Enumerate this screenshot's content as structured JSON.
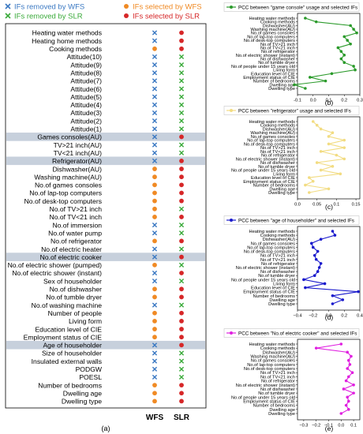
{
  "chart_data": [
    {
      "type": "scatter",
      "panel_label": "(a)",
      "legend": [
        {
          "label": "IFs removed by WFS",
          "marker": "x",
          "color": "#3a78c2"
        },
        {
          "label": "IFs selected by WFS",
          "marker": "dot",
          "color": "#f08a24"
        },
        {
          "label": "IFs removed by SLR",
          "marker": "x",
          "color": "#3aaa3a"
        },
        {
          "label": "IFs selected by SLR",
          "marker": "dot",
          "color": "#d62728"
        }
      ],
      "columns": [
        "WFS",
        "SLR"
      ],
      "rows": [
        {
          "label": "Heating water methods",
          "wfs": "x",
          "slr": "dot",
          "highlight": false
        },
        {
          "label": "Heating home methods",
          "wfs": "x",
          "slr": "dot",
          "highlight": false
        },
        {
          "label": "Cooking methods",
          "wfs": "dot",
          "slr": "dot",
          "highlight": false
        },
        {
          "label": "Attitude(10)",
          "wfs": "x",
          "slr": "x",
          "highlight": false
        },
        {
          "label": "Attitude(9)",
          "wfs": "x",
          "slr": "x",
          "highlight": false
        },
        {
          "label": "Attitude(8)",
          "wfs": "x",
          "slr": "x",
          "highlight": false
        },
        {
          "label": "Attitude(7)",
          "wfs": "x",
          "slr": "x",
          "highlight": false
        },
        {
          "label": "Attitude(6)",
          "wfs": "x",
          "slr": "x",
          "highlight": false
        },
        {
          "label": "Attitude(5)",
          "wfs": "x",
          "slr": "x",
          "highlight": false
        },
        {
          "label": "Attitude(4)",
          "wfs": "x",
          "slr": "x",
          "highlight": false
        },
        {
          "label": "Attitude(3)",
          "wfs": "x",
          "slr": "x",
          "highlight": false
        },
        {
          "label": "Attitude(2)",
          "wfs": "x",
          "slr": "x",
          "highlight": false
        },
        {
          "label": "Attitude(1)",
          "wfs": "x",
          "slr": "x",
          "highlight": false
        },
        {
          "label": "Games consoles(AU)",
          "wfs": "x",
          "slr": "dot",
          "highlight": true
        },
        {
          "label": "TV>21 inch(AU)",
          "wfs": "x",
          "slr": "x",
          "highlight": false
        },
        {
          "label": "TV<21 inch(AU)",
          "wfs": "x",
          "slr": "x",
          "highlight": false
        },
        {
          "label": "Refrigerator(AU)",
          "wfs": "x",
          "slr": "dot",
          "highlight": true
        },
        {
          "label": "Dishwasher(AU)",
          "wfs": "dot",
          "slr": "dot",
          "highlight": false
        },
        {
          "label": "Washing machine(AU)",
          "wfs": "dot",
          "slr": "dot",
          "highlight": false
        },
        {
          "label": "No.of games consoles",
          "wfs": "dot",
          "slr": "dot",
          "highlight": false
        },
        {
          "label": "No.of lap-top computers",
          "wfs": "dot",
          "slr": "dot",
          "highlight": false
        },
        {
          "label": "No.of desk-top computers",
          "wfs": "dot",
          "slr": "dot",
          "highlight": false
        },
        {
          "label": "No.of TV>21 inch",
          "wfs": "dot",
          "slr": "x",
          "highlight": false
        },
        {
          "label": "No.of TV<21 inch",
          "wfs": "dot",
          "slr": "dot",
          "highlight": false
        },
        {
          "label": "No.of immersion",
          "wfs": "x",
          "slr": "x",
          "highlight": false
        },
        {
          "label": "No.of water pump",
          "wfs": "x",
          "slr": "x",
          "highlight": false
        },
        {
          "label": "No.of refrigerator",
          "wfs": "dot",
          "slr": "dot",
          "highlight": false
        },
        {
          "label": "No.of electric heater",
          "wfs": "x",
          "slr": "x",
          "highlight": false
        },
        {
          "label": "No.of electric cooker",
          "wfs": "x",
          "slr": "dot",
          "highlight": true
        },
        {
          "label": "No.of electric shower (pumped)",
          "wfs": "dot",
          "slr": "x",
          "highlight": false
        },
        {
          "label": "No.of electric shower (instant)",
          "wfs": "x",
          "slr": "dot",
          "highlight": false
        },
        {
          "label": "Sex of householder",
          "wfs": "x",
          "slr": "x",
          "highlight": false
        },
        {
          "label": "No.of dishwasher",
          "wfs": "dot",
          "slr": "dot",
          "highlight": false
        },
        {
          "label": "No.of tumble dryer",
          "wfs": "dot",
          "slr": "dot",
          "highlight": false
        },
        {
          "label": "No.of washing machine",
          "wfs": "x",
          "slr": "x",
          "highlight": false
        },
        {
          "label": "Number of people",
          "wfs": "dot",
          "slr": "dot",
          "highlight": false
        },
        {
          "label": "Living form",
          "wfs": "dot",
          "slr": "dot",
          "highlight": false
        },
        {
          "label": "Education level of CIE",
          "wfs": "dot",
          "slr": "dot",
          "highlight": false
        },
        {
          "label": "Employment status of CIE",
          "wfs": "dot",
          "slr": "dot",
          "highlight": false
        },
        {
          "label": "Age of householder",
          "wfs": "x",
          "slr": "dot",
          "highlight": true
        },
        {
          "label": "Size of householder",
          "wfs": "x",
          "slr": "x",
          "highlight": false
        },
        {
          "label": "Insulated external walls",
          "wfs": "x",
          "slr": "x",
          "highlight": false
        },
        {
          "label": "PODGW",
          "wfs": "x",
          "slr": "x",
          "highlight": false
        },
        {
          "label": "POESL",
          "wfs": "x",
          "slr": "x",
          "highlight": false
        },
        {
          "label": "Number of bedrooms",
          "wfs": "dot",
          "slr": "dot",
          "highlight": false
        },
        {
          "label": "Dwelling age",
          "wfs": "dot",
          "slr": "dot",
          "highlight": false
        },
        {
          "label": "Dwelling type",
          "wfs": "dot",
          "slr": "dot",
          "highlight": false
        }
      ]
    },
    {
      "type": "line",
      "panel_label": "(b)",
      "legend": "PCC between \"game console\" usage and selected IFs",
      "color": "#2a9a2a",
      "categories": [
        "Heating water methods",
        "Cooking methods",
        "Dishwasher(AU)",
        "Washing machine(AU)",
        "No.of games consoles",
        "No.of lap-top computers",
        "No.of desk-top computers",
        "No.of TV>21 inch",
        "No.of TV<21 inch",
        "No.of refrigerator",
        "No.of electric shower (instant)",
        "No.of dishwasher",
        "No.of tumble dryer",
        "No.of people under 15 years old",
        "Living form",
        "Education level of CIE",
        "Employment status of CIE",
        "Number of bedrooms",
        "Dwelling age",
        "Dwelling type"
      ],
      "values": [
        -0.05,
        0.02,
        0.24,
        0.26,
        0.28,
        0.2,
        0.22,
        0.24,
        0.16,
        0.18,
        0.2,
        0.18,
        0.2,
        0.26,
        0.27,
        0.12,
        -0.02,
        0.08,
        -0.12,
        -0.05
      ],
      "xlim": [
        -0.1,
        0.3
      ],
      "xticks": [
        -0.1,
        0.0,
        0.1,
        0.2,
        0.3
      ]
    },
    {
      "type": "line",
      "panel_label": "(c)",
      "legend": "PCC between \"refrigerator\" usage and selected IFs",
      "color": "#f2dc82",
      "categories": [
        "Heating water methods",
        "Cooking methods",
        "Dishwasher(AU)",
        "Washing machine(AU)",
        "No.of games consoles",
        "No.of lap-top computers",
        "No.of desk-top computers",
        "No.of TV>21 inch",
        "No.of TV<21 inch",
        "No.of refrigerator",
        "No.of electric shower (instant)",
        "No.of dishwasher",
        "No.of tumble dryer",
        "No.of people under 15 years old",
        "Living form",
        "Education level of CIE",
        "Employment status of CIE",
        "Number of bedrooms",
        "Dwelling age",
        "Dwelling type"
      ],
      "values": [
        0.04,
        0.05,
        0.06,
        0.09,
        0.08,
        0.12,
        0.08,
        0.12,
        0.06,
        0.1,
        0.12,
        0.05,
        0.09,
        0.06,
        0.11,
        0.03,
        0.04,
        0.02,
        0.08,
        0.03
      ],
      "xlim": [
        0.0,
        0.16
      ],
      "xticks": [
        0.0,
        0.05,
        0.1,
        0.15
      ]
    },
    {
      "type": "line",
      "panel_label": "(d)",
      "legend": "PCC between \"age of householder\" and selected IFs",
      "color": "#1a1acc",
      "categories": [
        "Heating water methods",
        "Cooking methods",
        "Dishwasher(AU)",
        "No.of games consoles",
        "No.of lap-top computers",
        "No.of desk-top computers",
        "No.of TV>21 inch",
        "No.of TV<21 inch",
        "No.of refrigerator",
        "No.of electric shower (instant)",
        "No.of dishwasher",
        "No.of tumble dryer",
        "No.of people under 15 years old",
        "Living form",
        "Education level of CIE",
        "Employment status of CIE",
        "Number of bedrooms",
        "Dwelling age",
        "Dwelling type"
      ],
      "values": [
        0.05,
        0.08,
        -0.1,
        -0.22,
        -0.2,
        -0.14,
        -0.18,
        -0.16,
        -0.1,
        -0.12,
        -0.14,
        -0.18,
        -0.32,
        -0.05,
        -0.3,
        0.38,
        0.05,
        0.18,
        0.05
      ],
      "xlim": [
        -0.4,
        0.4
      ],
      "xticks": [
        -0.4,
        -0.2,
        0.0,
        0.2,
        0.4
      ],
      "xticklabels": [
        "−0.4",
        "−0.2",
        "0.0",
        "0.2",
        "0.4"
      ]
    },
    {
      "type": "line",
      "panel_label": "(e)",
      "legend": "PCC between \"No.of electric cooker\" and selected IFs",
      "color": "#e020e0",
      "categories": [
        "Heating water methods",
        "Cooking methods",
        "Dishwasher(AU)",
        "Washing machine(AU)",
        "No.of games consoles",
        "No.of lap-top computers",
        "No.of desk-top computers",
        "No.of TV>21 inch",
        "No.of TV<21 inch",
        "No.of refrigerator",
        "No.of electric shower (instant)",
        "No.of dishwasher",
        "No.of tumble dryer",
        "No.of people under 15 years old",
        "Employment status of CIE",
        "Number of bedrooms",
        "Dwelling age",
        "Dwelling type"
      ],
      "values": [
        0.0,
        -0.2,
        0.05,
        0.08,
        0.06,
        0.07,
        0.05,
        0.09,
        0.06,
        0.04,
        0.1,
        0.02,
        0.1,
        0.05,
        0.06,
        0.04,
        0.06,
        0.0
      ],
      "xlim": [
        -0.35,
        0.15
      ],
      "xticks": [
        -0.3,
        -0.2,
        -0.1,
        0.0,
        0.1
      ],
      "xticklabels": [
        "−0.3",
        "−0.2",
        "−0.1",
        "0.0",
        "0.1"
      ]
    }
  ]
}
